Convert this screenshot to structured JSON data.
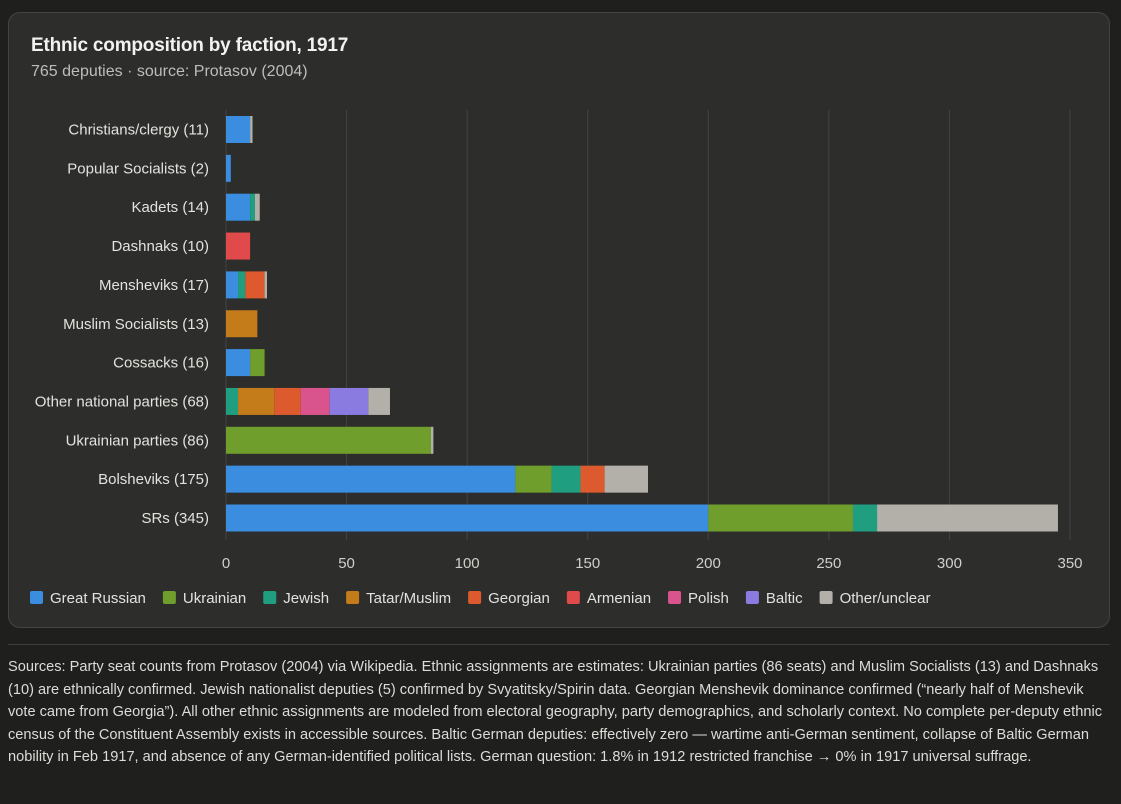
{
  "chart_data": {
    "type": "bar",
    "orientation": "horizontal",
    "stacked": true,
    "title": "Ethnic composition by faction, 1917",
    "subtitle": "765 deputies · source: Protasov (2004)",
    "xlim": [
      0,
      350
    ],
    "xticks": [
      0,
      50,
      100,
      150,
      200,
      250,
      300,
      350
    ],
    "grid": true,
    "legend_position": "bottom",
    "categories": [
      "Christians/clergy (11)",
      "Popular Socialists (2)",
      "Kadets (14)",
      "Dashnaks (10)",
      "Mensheviks (17)",
      "Muslim Socialists (13)",
      "Cossacks (16)",
      "Other national parties (68)",
      "Ukrainian parties (86)",
      "Bolsheviks (175)",
      "SRs (345)"
    ],
    "series": [
      {
        "name": "Great Russian",
        "color": "#3b8de0",
        "values": [
          10,
          2,
          10,
          0,
          5,
          0,
          10,
          0,
          0,
          120,
          200
        ]
      },
      {
        "name": "Ukrainian",
        "color": "#6f9e2d",
        "values": [
          0,
          0,
          0,
          0,
          0,
          0,
          6,
          0,
          85,
          15,
          60
        ]
      },
      {
        "name": "Jewish",
        "color": "#1f9e80",
        "values": [
          0,
          0,
          2,
          0,
          3,
          0,
          0,
          5,
          0,
          12,
          10
        ]
      },
      {
        "name": "Tatar/Muslim",
        "color": "#c47b19",
        "values": [
          0,
          0,
          0,
          0,
          0,
          13,
          0,
          15,
          0,
          0,
          0
        ]
      },
      {
        "name": "Georgian",
        "color": "#dd5a2e",
        "values": [
          0,
          0,
          0,
          0,
          8,
          0,
          0,
          11,
          0,
          10,
          0
        ]
      },
      {
        "name": "Armenian",
        "color": "#e14a4a",
        "values": [
          0,
          0,
          0,
          10,
          0,
          0,
          0,
          0,
          0,
          0,
          0
        ]
      },
      {
        "name": "Polish",
        "color": "#d9548c",
        "values": [
          0,
          0,
          0,
          0,
          0,
          0,
          0,
          12,
          0,
          0,
          0
        ]
      },
      {
        "name": "Baltic",
        "color": "#8a7be0",
        "values": [
          0,
          0,
          0,
          0,
          0,
          0,
          0,
          16,
          0,
          0,
          0
        ]
      },
      {
        "name": "Other/unclear",
        "color": "#b3b0a9",
        "values": [
          1,
          0,
          2,
          0,
          1,
          0,
          0,
          9,
          1,
          18,
          75
        ]
      }
    ]
  },
  "footnote": "Sources: Party seat counts from Protasov (2004) via Wikipedia. Ethnic assignments are estimates: Ukrainian parties (86 seats) and Muslim Socialists (13) and Dashnaks (10) are ethnically confirmed. Jewish nationalist deputies (5) confirmed by Svyatitsky/Spirin data. Georgian Menshevik dominance confirmed (“nearly half of Menshevik vote came from Georgia”). All other ethnic assignments are modeled from electoral geography, party demographics, and scholarly context. No complete per-deputy ethnic census of the Constituent Assembly exists in accessible sources. Baltic German deputies: effectively zero — wartime anti-German sentiment, collapse of Baltic German nobility in Feb 1917, and absence of any German-identified political lists. German question: 1.8% in 1912 restricted franchise → 0% in 1917 universal suffrage."
}
